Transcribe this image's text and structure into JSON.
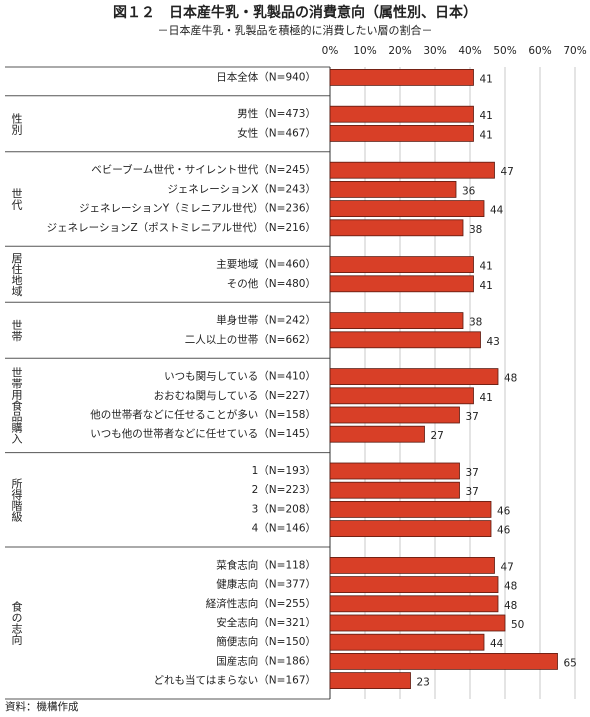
{
  "chart_data": {
    "type": "bar",
    "orientation": "horizontal",
    "title": "図１２　日本産牛乳・乳製品の消費意向（属性別、日本）",
    "subtitle": "－日本産牛乳・乳製品を積極的に消費したい層の割合－",
    "source": "資料：機構作成",
    "color": "#d83f27",
    "grid": true,
    "xlim": [
      0,
      70
    ],
    "xticks": [
      {
        "value": 0,
        "label": "0%"
      },
      {
        "value": 10,
        "label": "10%"
      },
      {
        "value": 20,
        "label": "20%"
      },
      {
        "value": 30,
        "label": "30%"
      },
      {
        "value": 40,
        "label": "40%"
      },
      {
        "value": 50,
        "label": "50%"
      },
      {
        "value": 60,
        "label": "60%"
      },
      {
        "value": 70,
        "label": "70%"
      }
    ],
    "groups": [
      {
        "categories": [
          "日本全体（N=940）"
        ],
        "values": [
          41
        ]
      },
      {
        "name": "性別",
        "categories": [
          "男性（N=473）",
          "女性（N=467）"
        ],
        "values": [
          41,
          41
        ]
      },
      {
        "name": "世代",
        "categories": [
          "ベビーブーム世代・サイレント世代（N=245）",
          "ジェネレーションX（N=243）",
          "ジェネレーションY（ミレニアル世代）（N=236）",
          "ジェネレーションZ（ポストミレニアル世代）（N=216）"
        ],
        "values": [
          47,
          36,
          44,
          38
        ]
      },
      {
        "name": "居住地域",
        "categories": [
          "主要地域（N=460）",
          "その他（N=480）"
        ],
        "values": [
          41,
          41
        ]
      },
      {
        "name": "世帯",
        "categories": [
          "単身世帯（N=242）",
          "二人以上の世帯（N=662）"
        ],
        "values": [
          38,
          43
        ]
      },
      {
        "name": "世帯用食品購入",
        "categories": [
          "いつも関与している（N=410）",
          "おおむね関与している（N=227）",
          "他の世帯者などに任せることが多い（N=158）",
          "いつも他の世帯者などに任せている（N=145）"
        ],
        "values": [
          48,
          41,
          37,
          27
        ]
      },
      {
        "name": "所得階級",
        "categories": [
          "1（N=193）",
          "2（N=223）",
          "3（N=208）",
          "4（N=146）"
        ],
        "values": [
          37,
          37,
          46,
          46
        ]
      },
      {
        "name": "食の志向",
        "categories": [
          "菜食志向（N=118）",
          "健康志向（N=377）",
          "経済性志向（N=255）",
          "安全志向（N=321）",
          "簡便志向（N=150）",
          "国産志向（N=186）",
          "どれも当てはまらない（N=167）"
        ],
        "values": [
          47,
          48,
          48,
          50,
          44,
          65,
          23
        ]
      }
    ]
  }
}
